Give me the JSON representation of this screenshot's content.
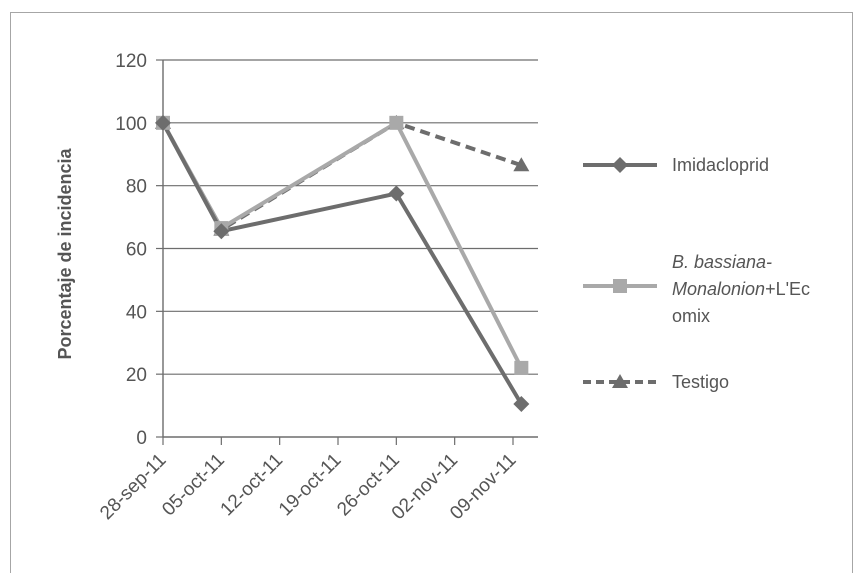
{
  "chart_data": {
    "type": "line",
    "title": "",
    "xlabel": "",
    "ylabel": "Porcentaje de incidencia",
    "ylim": [
      0,
      120
    ],
    "yticks": [
      0,
      20,
      40,
      60,
      80,
      100,
      120
    ],
    "x_tick_labels": [
      "28-sep-11",
      "05-oct-11",
      "12-oct-11",
      "19-oct-11",
      "26-oct-11",
      "02-nov-11",
      "09-nov-11"
    ],
    "grid": "horizontal",
    "legend_position": "right",
    "series": [
      {
        "name": "Imidacloprid",
        "color": "#6d6d6d",
        "marker": "diamond",
        "dash": "solid",
        "points": [
          {
            "x": "2011-09-28",
            "y": 100
          },
          {
            "x": "2011-10-05",
            "y": 65.5
          },
          {
            "x": "2011-10-26",
            "y": 77.5
          },
          {
            "x": "2011-11-10",
            "y": 10.5
          }
        ]
      },
      {
        "name_parts": [
          {
            "text": "B. bassiana-",
            "style": "italic"
          },
          {
            "text": "Monalonion",
            "style": "italic"
          },
          {
            "text": "+L'Ec",
            "style": "normal"
          },
          {
            "text": "omix",
            "style": "normal"
          }
        ],
        "color": "#a9a9a9",
        "marker": "square",
        "dash": "solid",
        "points": [
          {
            "x": "2011-09-28",
            "y": 100
          },
          {
            "x": "2011-10-05",
            "y": 66.5
          },
          {
            "x": "2011-10-26",
            "y": 100
          },
          {
            "x": "2011-11-10",
            "y": 22
          }
        ]
      },
      {
        "name": "Testigo",
        "color": "#6d6d6d",
        "marker": "triangle",
        "dash": "dashed",
        "points": [
          {
            "x": "2011-09-28",
            "y": 100
          },
          {
            "x": "2011-10-05",
            "y": 66
          },
          {
            "x": "2011-10-26",
            "y": 100
          },
          {
            "x": "2011-11-10",
            "y": 86.5
          }
        ]
      }
    ]
  }
}
